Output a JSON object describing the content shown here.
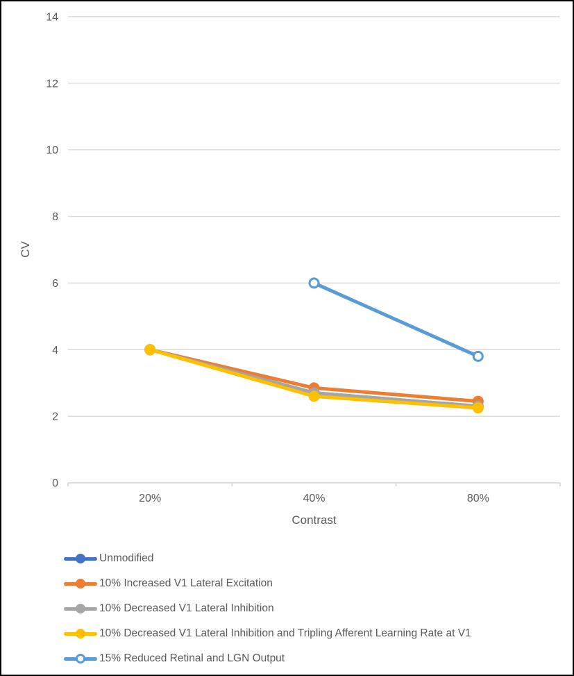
{
  "chart_data": {
    "type": "line",
    "title": "",
    "xlabel": "Contrast",
    "ylabel": "CV",
    "categories": [
      "20%",
      "40%",
      "80%"
    ],
    "ylim": [
      0,
      14
    ],
    "yticks": [
      0,
      2,
      4,
      6,
      8,
      10,
      12,
      14
    ],
    "grid": true,
    "legend_position": "bottom-left",
    "series": [
      {
        "name": "Unmodified",
        "color": "#4472C4",
        "marker": "filled",
        "values": [
          4.0,
          2.7,
          2.3
        ],
        "note": "coincides with gray series in plot (hidden beneath it)"
      },
      {
        "name": "10% Increased V1 Lateral Excitation",
        "color": "#ED7D31",
        "marker": "filled",
        "values": [
          4.0,
          2.85,
          2.45
        ]
      },
      {
        "name": "10% Decreased V1 Lateral Inhibition",
        "color": "#A5A5A5",
        "marker": "filled",
        "values": [
          4.0,
          2.7,
          2.3
        ]
      },
      {
        "name": "10% Decreased V1 Lateral Inhibition and Tripling Afferent Learning Rate at V1",
        "color": "#FFC000",
        "marker": "filled",
        "values": [
          4.0,
          2.6,
          2.25
        ]
      },
      {
        "name": "15% Reduced Retinal and LGN Output",
        "color": "#5B9BD5",
        "marker": "open",
        "values": [
          null,
          6.0,
          3.8
        ]
      }
    ]
  },
  "style_colors": {
    "grid": "#D9D9D9",
    "axis": "#D9D9D9",
    "text": "#595959",
    "background": "#FFFFFF",
    "frame_border": "#000000"
  }
}
